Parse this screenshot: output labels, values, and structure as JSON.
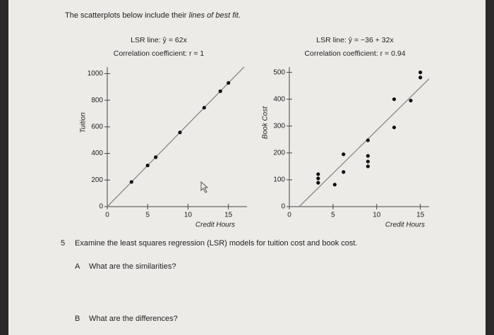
{
  "intro": {
    "before": "The scatterplots below include their",
    "emphasis": "lines of best fit."
  },
  "chart_data": [
    {
      "type": "scatter",
      "subtitle": "LSR line: ŷ = 62x",
      "caption": "Correlation coefficient: r = 1",
      "y_label": "Tuition",
      "x_label": "Credit Hours",
      "x": [
        3,
        5,
        6,
        9,
        12,
        14,
        15
      ],
      "values": [
        186,
        310,
        372,
        558,
        744,
        868,
        930
      ],
      "fit": {
        "intercept": 0,
        "slope": 62
      },
      "xlim": [
        0,
        17.3
      ],
      "ylim": [
        0,
        1050
      ],
      "xticks": [
        0,
        5,
        10,
        15
      ],
      "yticks": [
        0,
        200,
        400,
        600,
        800,
        1000
      ],
      "color": "#111111"
    },
    {
      "type": "scatter",
      "subtitle": "LSR line: ŷ = −36 + 32x",
      "caption": "Correlation coefficient: r = 0.94",
      "y_label": "Book Cost",
      "x_label": "Credit Hours",
      "x": [
        3.3,
        3.3,
        3.3,
        5.2,
        6.2,
        6.2,
        9,
        9,
        9,
        9,
        12,
        12,
        13.9,
        15,
        15
      ],
      "values": [
        121,
        105,
        89,
        82,
        129,
        195,
        247,
        189,
        168,
        150,
        295,
        400,
        395,
        500,
        481
      ],
      "fit": {
        "intercept": -36,
        "slope": 32
      },
      "xlim": [
        0,
        16
      ],
      "ylim": [
        0,
        520
      ],
      "xticks": [
        0,
        5,
        10,
        15
      ],
      "yticks": [
        0,
        100,
        200,
        300,
        400,
        500
      ],
      "color": "#111111"
    }
  ],
  "question": {
    "number": "5",
    "text": "Examine the least squares regression (LSR) models for tuition cost and book cost.",
    "parts": [
      {
        "letter": "A",
        "text": "What are the similarities?"
      },
      {
        "letter": "B",
        "text": "What are the differences?"
      }
    ]
  }
}
